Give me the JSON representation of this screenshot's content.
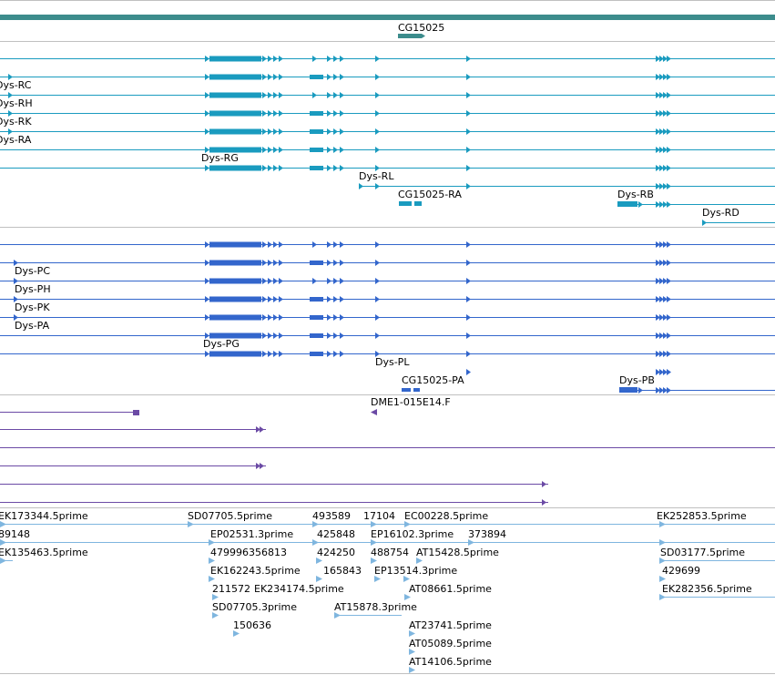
{
  "colors": {
    "chromosome": "#3c8c8c",
    "gene": "#3c8c8c",
    "transcript": "#1a9bbf",
    "protein": "#3366cc",
    "mapping": "#6b4aa5",
    "est": "#7fb6df",
    "separator": "#c0c0c0"
  },
  "gene_track": {
    "label": "CG15025"
  },
  "transcript_track": {
    "labels": [
      "Dys-RC",
      "Dys-RH",
      "Dys-RK",
      "Dys-RA",
      "Dys-RG",
      "Dys-RL",
      "CG15025-RA",
      "Dys-RB",
      "Dys-RD"
    ]
  },
  "protein_track": {
    "labels": [
      "Dys-PC",
      "Dys-PH",
      "Dys-PK",
      "Dys-PA",
      "Dys-PG",
      "Dys-PL",
      "CG15025-PA",
      "Dys-PB"
    ]
  },
  "mapping_track": {
    "labels": [
      "DME1-015E14.F"
    ]
  },
  "est_track": {
    "labels": [
      "EK173344.5prime",
      "SD07705.5prime",
      "493589",
      "17104",
      "EC00228.5prime",
      "EK252853.5prime",
      "89148",
      "EP02531.3prime",
      "425848",
      "EP16102.3prime",
      "373894",
      "EK135463.5prime",
      "479996356813",
      "424250",
      "488754",
      "AT15428.5prime",
      "SD03177.5prime",
      "EK162243.5prime",
      "165843",
      "EP13514.3prime",
      "429699",
      "211572",
      "EK234174.5prime",
      "AT08661.5prime",
      "EK282356.5prime",
      "SD07705.3prime",
      "AT15878.3prime",
      "150636",
      "AT23741.5prime",
      "AT05089.5prime",
      "AT14106.5prime"
    ]
  }
}
